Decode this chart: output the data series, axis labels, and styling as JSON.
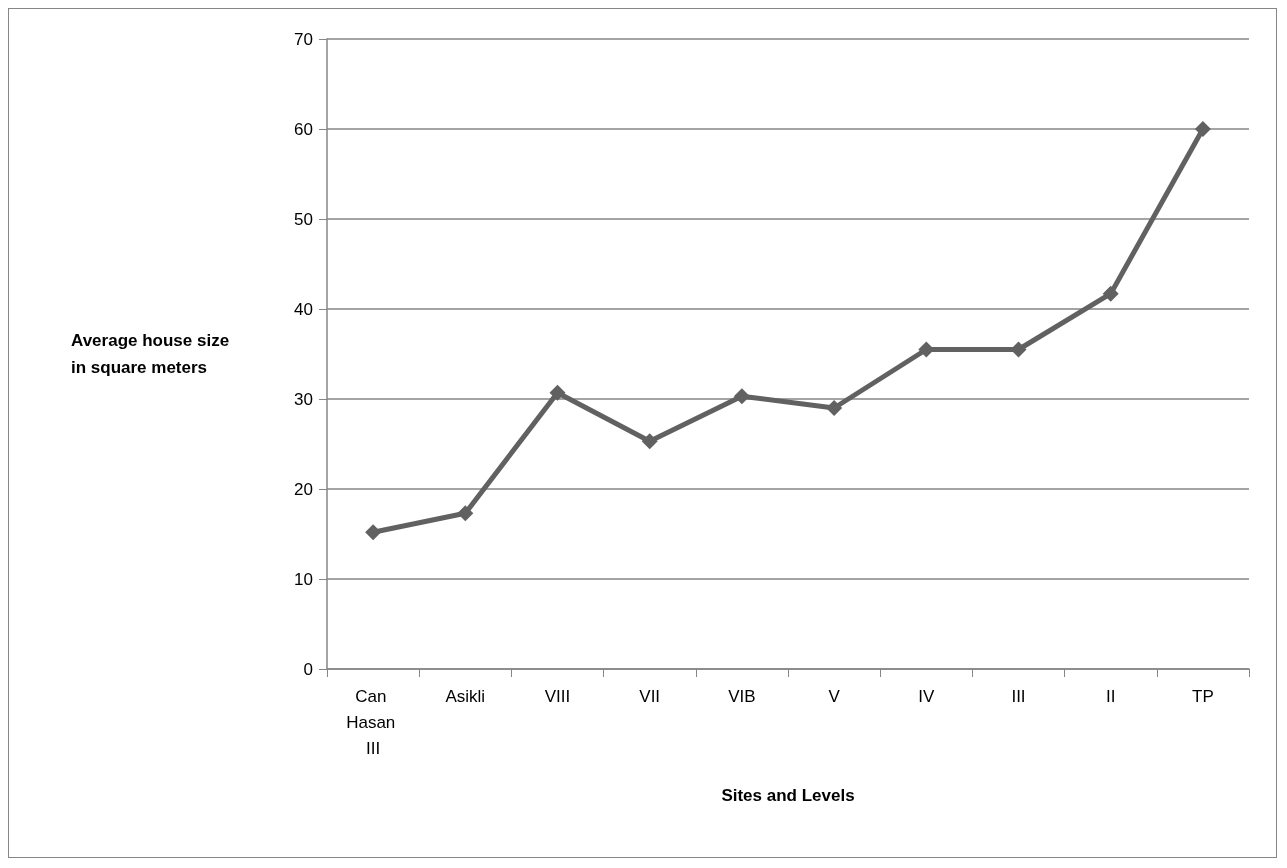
{
  "chart_data": {
    "type": "line",
    "xlabel": "Sites and Levels",
    "ylabel": "Average house size in square meters",
    "categories": [
      "Can Hasan III",
      "Asikli",
      "VIII",
      "VII",
      "VIB",
      "V",
      "IV",
      "III",
      "II",
      "TP"
    ],
    "series": [
      {
        "color": "#616161",
        "values": [
          15.2,
          17.3,
          30.7,
          25.3,
          30.3,
          29.0,
          35.5,
          35.5,
          41.7,
          60.0
        ]
      }
    ],
    "ylim": [
      0,
      70
    ],
    "yticks": [
      0,
      10,
      20,
      30,
      40,
      50,
      60,
      70
    ],
    "grid": "y",
    "marker": "diamond",
    "line_style": "solid"
  }
}
